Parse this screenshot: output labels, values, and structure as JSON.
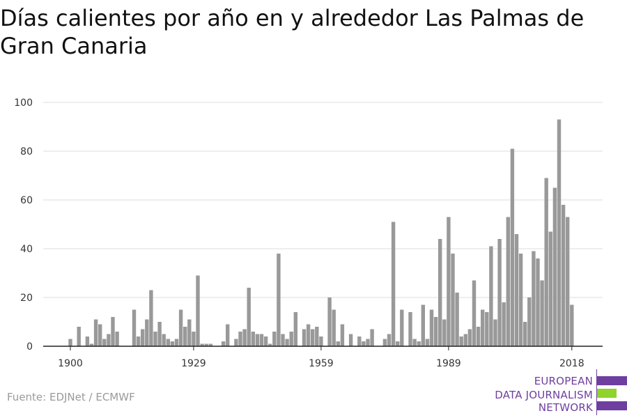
{
  "title": "Días calientes por año en y alrededor Las Palmas de Gran Canaria",
  "source": "Fuente: EDJNet / ECMWF",
  "logo": {
    "line1": "EUROPEAN",
    "line2": "DATA JOURNALISM",
    "line3": "NETWORK",
    "colors": {
      "purple": "#6e3fa0",
      "green": "#8fd32b"
    }
  },
  "chart_data": {
    "type": "bar",
    "title": "Días calientes por año en y alrededor Las Palmas de Gran Canaria",
    "xlabel": "",
    "ylabel": "",
    "x_start": 1900,
    "x_end": 2018,
    "ylim": [
      0,
      100
    ],
    "yticks": [
      0,
      20,
      40,
      60,
      80,
      100
    ],
    "xticks": [
      1900,
      1929,
      1959,
      1989,
      2018
    ],
    "grid": true,
    "bar_color": "#999999",
    "x": [
      1900,
      1901,
      1902,
      1903,
      1904,
      1905,
      1906,
      1907,
      1908,
      1909,
      1910,
      1911,
      1912,
      1913,
      1914,
      1915,
      1916,
      1917,
      1918,
      1919,
      1920,
      1921,
      1922,
      1923,
      1924,
      1925,
      1926,
      1927,
      1928,
      1929,
      1930,
      1931,
      1932,
      1933,
      1934,
      1935,
      1936,
      1937,
      1938,
      1939,
      1940,
      1941,
      1942,
      1943,
      1944,
      1945,
      1946,
      1947,
      1948,
      1949,
      1950,
      1951,
      1952,
      1953,
      1954,
      1955,
      1956,
      1957,
      1958,
      1959,
      1960,
      1961,
      1962,
      1963,
      1964,
      1965,
      1966,
      1967,
      1968,
      1969,
      1970,
      1971,
      1972,
      1973,
      1974,
      1975,
      1976,
      1977,
      1978,
      1979,
      1980,
      1981,
      1982,
      1983,
      1984,
      1985,
      1986,
      1987,
      1988,
      1989,
      1990,
      1991,
      1992,
      1993,
      1994,
      1995,
      1996,
      1997,
      1998,
      1999,
      2000,
      2001,
      2002,
      2003,
      2004,
      2005,
      2006,
      2007,
      2008,
      2009,
      2010,
      2011,
      2012,
      2013,
      2014,
      2015,
      2016,
      2017,
      2018
    ],
    "values": [
      3,
      0,
      8,
      0,
      4,
      1,
      11,
      9,
      3,
      5,
      12,
      6,
      0,
      0,
      0,
      15,
      4,
      7,
      11,
      23,
      6,
      10,
      5,
      3,
      2,
      3,
      15,
      8,
      11,
      6,
      29,
      1,
      1,
      1,
      0,
      0,
      2,
      9,
      0,
      3,
      6,
      7,
      24,
      6,
      5,
      5,
      4,
      1,
      6,
      38,
      5,
      3,
      6,
      14,
      0,
      7,
      9,
      7,
      8,
      4,
      0,
      20,
      15,
      2,
      9,
      0,
      5,
      0,
      4,
      2,
      3,
      7,
      0,
      0,
      3,
      5,
      51,
      2,
      15,
      0,
      14,
      3,
      2,
      17,
      3,
      15,
      12,
      44,
      11,
      53,
      38,
      22,
      4,
      5,
      7,
      27,
      8,
      15,
      14,
      41,
      11,
      44,
      18,
      53,
      81,
      46,
      38,
      10,
      20,
      39,
      36,
      27,
      69,
      47,
      65,
      93,
      58,
      53,
      17
    ]
  }
}
